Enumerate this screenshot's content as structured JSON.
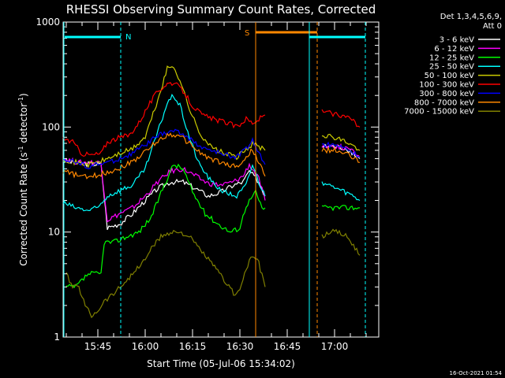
{
  "chart_data": {
    "type": "line",
    "title": "RHESSI Observing Summary Count Rates, Corrected",
    "xlabel": "Start Time (05-Jul-06 15:34:02)",
    "ylabel": "Corrected Count Rate (s",
    "ylabel_sup1": "-1",
    "ylabel_mid": " detector",
    "ylabel_sup2": "-1",
    "ylabel_end": ")",
    "x_unit": "minutes since 15:34:02",
    "xlim": [
      0,
      100
    ],
    "ylim": [
      1,
      1000
    ],
    "y_scale": "log",
    "x_ticks": [
      {
        "label": "15:45",
        "value": 11
      },
      {
        "label": "16:00",
        "value": 26
      },
      {
        "label": "16:15",
        "value": 41
      },
      {
        "label": "16:30",
        "value": 56
      },
      {
        "label": "16:45",
        "value": 71
      },
      {
        "label": "17:00",
        "value": 86
      }
    ],
    "y_ticks": [
      {
        "label": "1",
        "value": 1
      },
      {
        "label": "10",
        "value": 10
      },
      {
        "label": "100",
        "value": 100
      },
      {
        "label": "1000",
        "value": 1000
      }
    ],
    "legend_header": [
      "Det 1,3,4,5,6,9,",
      "Att 0"
    ],
    "legend_position": "right",
    "series": [
      {
        "name": "3 - 6 keV",
        "color": "#ffffff",
        "points": [
          [
            0,
            48
          ],
          [
            5,
            45
          ],
          [
            12,
            44
          ],
          [
            14,
            11
          ],
          [
            18,
            12
          ],
          [
            22,
            15
          ],
          [
            26,
            20
          ],
          [
            30,
            26
          ],
          [
            34,
            30
          ],
          [
            38,
            30
          ],
          [
            42,
            26
          ],
          [
            46,
            22
          ],
          [
            50,
            24
          ],
          [
            54,
            28
          ],
          [
            57,
            30
          ],
          [
            59,
            38
          ],
          [
            62,
            30
          ],
          [
            64,
            22
          ]
        ],
        "points2": [
          [
            82,
            65
          ],
          [
            86,
            65
          ],
          [
            90,
            62
          ],
          [
            94,
            50
          ]
        ]
      },
      {
        "name": "6 - 12 keV",
        "color": "#ff00ff",
        "points": [
          [
            0,
            50
          ],
          [
            5,
            46
          ],
          [
            12,
            46
          ],
          [
            14,
            13
          ],
          [
            18,
            15
          ],
          [
            22,
            17
          ],
          [
            26,
            22
          ],
          [
            30,
            30
          ],
          [
            34,
            38
          ],
          [
            38,
            40
          ],
          [
            42,
            34
          ],
          [
            46,
            29
          ],
          [
            50,
            28
          ],
          [
            54,
            30
          ],
          [
            57,
            34
          ],
          [
            59,
            44
          ],
          [
            62,
            32
          ],
          [
            64,
            20
          ]
        ],
        "points2": [
          [
            82,
            66
          ],
          [
            86,
            66
          ],
          [
            90,
            63
          ],
          [
            94,
            52
          ]
        ]
      },
      {
        "name": "12 - 25 keV",
        "color": "#00ff00",
        "points": [
          [
            1,
            3
          ],
          [
            4,
            3
          ],
          [
            8,
            4
          ],
          [
            12,
            4
          ],
          [
            13,
            8
          ],
          [
            16,
            8
          ],
          [
            20,
            9
          ],
          [
            24,
            10
          ],
          [
            28,
            14
          ],
          [
            32,
            28
          ],
          [
            35,
            44
          ],
          [
            38,
            40
          ],
          [
            41,
            24
          ],
          [
            45,
            15
          ],
          [
            49,
            12
          ],
          [
            53,
            10
          ],
          [
            56,
            11
          ],
          [
            58,
            18
          ],
          [
            61,
            24
          ],
          [
            63,
            17
          ],
          [
            64,
            17
          ]
        ],
        "points2": [
          [
            82,
            17
          ],
          [
            94,
            17
          ]
        ]
      },
      {
        "name": "25 - 50 keV",
        "color": "#00ffff",
        "points": [
          [
            0,
            19
          ],
          [
            4,
            17
          ],
          [
            8,
            16
          ],
          [
            11,
            17
          ],
          [
            14,
            22
          ],
          [
            18,
            25
          ],
          [
            22,
            28
          ],
          [
            26,
            40
          ],
          [
            30,
            90
          ],
          [
            33,
            170
          ],
          [
            35,
            200
          ],
          [
            37,
            160
          ],
          [
            40,
            80
          ],
          [
            43,
            45
          ],
          [
            47,
            30
          ],
          [
            51,
            24
          ],
          [
            55,
            22
          ],
          [
            58,
            28
          ],
          [
            60,
            44
          ],
          [
            62,
            30
          ],
          [
            64,
            22
          ]
        ],
        "points2": [
          [
            82,
            30
          ],
          [
            84,
            28
          ],
          [
            88,
            25
          ],
          [
            92,
            22
          ],
          [
            94,
            20
          ]
        ]
      },
      {
        "name": "50 - 100 keV",
        "color": "#cccc00",
        "points": [
          [
            0,
            50
          ],
          [
            4,
            46
          ],
          [
            8,
            44
          ],
          [
            11,
            46
          ],
          [
            14,
            50
          ],
          [
            18,
            56
          ],
          [
            22,
            62
          ],
          [
            26,
            80
          ],
          [
            30,
            180
          ],
          [
            33,
            360
          ],
          [
            35,
            380
          ],
          [
            37,
            280
          ],
          [
            40,
            150
          ],
          [
            43,
            90
          ],
          [
            47,
            64
          ],
          [
            51,
            56
          ],
          [
            55,
            52
          ],
          [
            58,
            60
          ],
          [
            60,
            70
          ],
          [
            62,
            65
          ],
          [
            64,
            60
          ]
        ],
        "points2": [
          [
            82,
            85
          ],
          [
            86,
            80
          ],
          [
            90,
            72
          ],
          [
            94,
            60
          ]
        ]
      },
      {
        "name": "100 - 300 keV",
        "color": "#ff0000",
        "points": [
          [
            0,
            78
          ],
          [
            3,
            72
          ],
          [
            6,
            56
          ],
          [
            9,
            54
          ],
          [
            12,
            56
          ],
          [
            14,
            72
          ],
          [
            17,
            78
          ],
          [
            21,
            84
          ],
          [
            24,
            110
          ],
          [
            27,
            160
          ],
          [
            30,
            220
          ],
          [
            33,
            260
          ],
          [
            35,
            265
          ],
          [
            38,
            220
          ],
          [
            41,
            160
          ],
          [
            44,
            130
          ],
          [
            48,
            118
          ],
          [
            52,
            110
          ],
          [
            55,
            100
          ],
          [
            58,
            120
          ],
          [
            60,
            110
          ],
          [
            62,
            118
          ],
          [
            64,
            130
          ]
        ],
        "points2": [
          [
            82,
            140
          ],
          [
            85,
            135
          ],
          [
            88,
            130
          ],
          [
            91,
            120
          ],
          [
            94,
            100
          ]
        ]
      },
      {
        "name": "300 - 800 keV",
        "color": "#0000ff",
        "points": [
          [
            0,
            50
          ],
          [
            4,
            46
          ],
          [
            8,
            42
          ],
          [
            11,
            44
          ],
          [
            14,
            46
          ],
          [
            18,
            50
          ],
          [
            22,
            56
          ],
          [
            26,
            68
          ],
          [
            30,
            82
          ],
          [
            33,
            90
          ],
          [
            35,
            92
          ],
          [
            38,
            86
          ],
          [
            41,
            74
          ],
          [
            44,
            64
          ],
          [
            48,
            58
          ],
          [
            52,
            54
          ],
          [
            55,
            52
          ],
          [
            58,
            62
          ],
          [
            60,
            76
          ],
          [
            62,
            56
          ],
          [
            64,
            44
          ]
        ],
        "points2": [
          [
            82,
            68
          ],
          [
            86,
            68
          ],
          [
            90,
            62
          ],
          [
            94,
            52
          ]
        ]
      },
      {
        "name": "800 - 7000 keV",
        "color": "#ff8800",
        "points": [
          [
            0,
            38
          ],
          [
            4,
            35
          ],
          [
            8,
            33
          ],
          [
            11,
            35
          ],
          [
            14,
            37
          ],
          [
            18,
            41
          ],
          [
            22,
            47
          ],
          [
            26,
            58
          ],
          [
            30,
            74
          ],
          [
            33,
            84
          ],
          [
            35,
            85
          ],
          [
            38,
            78
          ],
          [
            41,
            66
          ],
          [
            44,
            55
          ],
          [
            48,
            48
          ],
          [
            52,
            44
          ],
          [
            55,
            42
          ],
          [
            58,
            50
          ],
          [
            60,
            62
          ],
          [
            62,
            46
          ],
          [
            64,
            34
          ]
        ],
        "points2": [
          [
            82,
            60
          ],
          [
            86,
            60
          ],
          [
            90,
            55
          ],
          [
            94,
            46
          ]
        ]
      },
      {
        "name": "7000 - 15000 keV",
        "color": "#808000",
        "points": [
          [
            1,
            4
          ],
          [
            3,
            3
          ],
          [
            5,
            3
          ],
          [
            7,
            2
          ],
          [
            9,
            1.6
          ],
          [
            11,
            1.8
          ],
          [
            13,
            2.2
          ],
          [
            16,
            2.6
          ],
          [
            19,
            3.2
          ],
          [
            22,
            4
          ],
          [
            25,
            5
          ],
          [
            28,
            7
          ],
          [
            31,
            9
          ],
          [
            34,
            10
          ],
          [
            37,
            10
          ],
          [
            40,
            9
          ],
          [
            43,
            7
          ],
          [
            46,
            5.5
          ],
          [
            49,
            4.2
          ],
          [
            52,
            3.2
          ],
          [
            54,
            2.6
          ],
          [
            56,
            2.8
          ],
          [
            58,
            4.5
          ],
          [
            60,
            6
          ],
          [
            62,
            5
          ],
          [
            64,
            3
          ]
        ],
        "points2": [
          [
            82,
            9
          ],
          [
            84,
            10
          ],
          [
            87,
            10
          ],
          [
            90,
            9
          ],
          [
            92,
            7.5
          ],
          [
            94,
            6
          ]
        ]
      }
    ],
    "annotations": [
      {
        "label": "N",
        "color": "#00ffff"
      },
      {
        "label": "S",
        "color": "#ff8800"
      }
    ],
    "timestamp": "16-Oct-2021 01:54"
  }
}
